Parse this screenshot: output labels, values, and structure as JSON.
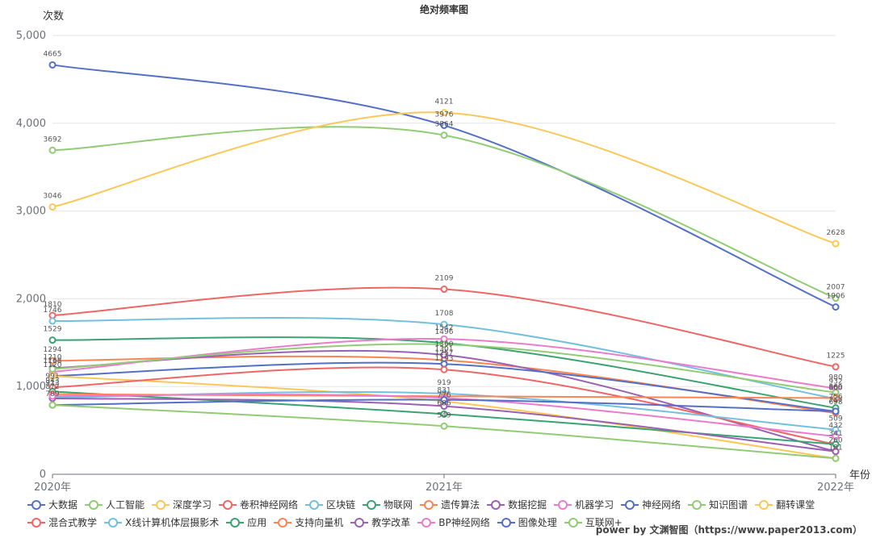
{
  "chart_data": {
    "type": "line",
    "title": "绝对频率图",
    "ylabel": "次数",
    "xlabel": "年份",
    "categories": [
      "2020年",
      "2021年",
      "2022年"
    ],
    "ylim": [
      0,
      5000
    ],
    "yticks": [
      0,
      1000,
      2000,
      3000,
      4000,
      5000
    ],
    "ytick_labels": [
      "0",
      "1,000",
      "2,000",
      "3,000",
      "4,000",
      "5,000"
    ],
    "smooth": true,
    "grid": "horizontal",
    "legend_position": "bottom",
    "series": [
      {
        "name": "大数据",
        "color": "#5470c6",
        "values": [
          4665,
          3976,
          1906
        ]
      },
      {
        "name": "人工智能",
        "color": "#91cc75",
        "values": [
          3692,
          3864,
          2007
        ]
      },
      {
        "name": "深度学习",
        "color": "#fac858",
        "values": [
          3046,
          4121,
          2628
        ]
      },
      {
        "name": "卷积神经网络",
        "color": "#ee6666",
        "values": [
          1810,
          2109,
          1225
        ]
      },
      {
        "name": "区块链",
        "color": "#73c0de",
        "values": [
          1746,
          1708,
          860
        ]
      },
      {
        "name": "物联网",
        "color": "#3ba272",
        "values": [
          1529,
          1496,
          756
        ]
      },
      {
        "name": "遗传算法",
        "color": "#fc8452",
        "values": [
          1294,
          1301,
          698
        ]
      },
      {
        "name": "数据挖掘",
        "color": "#9a60b4",
        "values": [
          1210,
          1360,
          260
        ]
      },
      {
        "name": "机器学习",
        "color": "#ea7ccc",
        "values": [
          1168,
          1542,
          980
        ]
      },
      {
        "name": "神经网络",
        "color": "#5470c6",
        "values": [
          1120,
          1257,
          717
        ]
      },
      {
        "name": "知识图谱",
        "color": "#91cc75",
        "values": [
          1200,
          1480,
          932
        ]
      },
      {
        "name": "翻转课堂",
        "color": "#fac858",
        "values": [
          1120,
          831,
          181
        ]
      },
      {
        "name": "混合式教学",
        "color": "#ee6666",
        "values": [
          991,
          1193,
          341
        ]
      },
      {
        "name": "X线计算机体层摄影术",
        "color": "#73c0de",
        "values": [
          872,
          919,
          509
        ]
      },
      {
        "name": "应用",
        "color": "#3ba272",
        "values": [
          943,
          686,
          342
        ]
      },
      {
        "name": "支持向量机",
        "color": "#fc8452",
        "values": [
          913,
          889,
          869
        ]
      },
      {
        "name": "教学改革",
        "color": "#9a60b4",
        "values": [
          865,
          776,
          260
        ]
      },
      {
        "name": "BP神经网络",
        "color": "#ea7ccc",
        "values": [
          891,
          870,
          432
        ]
      },
      {
        "name": "图像处理",
        "color": "#5470c6",
        "values": [
          789,
          849,
          717
        ]
      },
      {
        "name": "互联网+",
        "color": "#91cc75",
        "values": [
          789,
          549,
          181
        ]
      }
    ],
    "data_labels": [
      {
        "x": 0,
        "text": "4665",
        "value": 4665
      },
      {
        "x": 0,
        "text": "3692",
        "value": 3692
      },
      {
        "x": 0,
        "text": "3046",
        "value": 3046
      },
      {
        "x": 0,
        "text": "1810",
        "value": 1810
      },
      {
        "x": 0,
        "text": "1746",
        "value": 1746
      },
      {
        "x": 0,
        "text": "1529",
        "value": 1529
      },
      {
        "x": 0,
        "text": "1294",
        "value": 1294
      },
      {
        "x": 0,
        "text": "1210",
        "value": 1210
      },
      {
        "x": 0,
        "text": "1168",
        "value": 1168
      },
      {
        "x": 0,
        "text": "1120",
        "value": 1120
      },
      {
        "x": 0,
        "text": "991",
        "value": 991
      },
      {
        "x": 0,
        "text": "943",
        "value": 943
      },
      {
        "x": 0,
        "text": "913",
        "value": 913
      },
      {
        "x": 0,
        "text": "872",
        "value": 872
      },
      {
        "x": 0,
        "text": "789",
        "value": 789
      },
      {
        "x": 1,
        "text": "4121",
        "value": 4121
      },
      {
        "x": 1,
        "text": "3976",
        "value": 3976
      },
      {
        "x": 1,
        "text": "3864",
        "value": 3864
      },
      {
        "x": 1,
        "text": "2109",
        "value": 2109
      },
      {
        "x": 1,
        "text": "1708",
        "value": 1708
      },
      {
        "x": 1,
        "text": "1542",
        "value": 1542
      },
      {
        "x": 1,
        "text": "1496",
        "value": 1496
      },
      {
        "x": 1,
        "text": "1360",
        "value": 1360
      },
      {
        "x": 1,
        "text": "1301",
        "value": 1301
      },
      {
        "x": 1,
        "text": "1257",
        "value": 1257
      },
      {
        "x": 1,
        "text": "1193",
        "value": 1193
      },
      {
        "x": 1,
        "text": "919",
        "value": 919
      },
      {
        "x": 1,
        "text": "831",
        "value": 831
      },
      {
        "x": 1,
        "text": "776",
        "value": 776
      },
      {
        "x": 1,
        "text": "686",
        "value": 686
      },
      {
        "x": 1,
        "text": "549",
        "value": 549
      },
      {
        "x": 2,
        "text": "2628",
        "value": 2628
      },
      {
        "x": 2,
        "text": "2007",
        "value": 2007
      },
      {
        "x": 2,
        "text": "1906",
        "value": 1906
      },
      {
        "x": 2,
        "text": "1225",
        "value": 1225
      },
      {
        "x": 2,
        "text": "980",
        "value": 980
      },
      {
        "x": 2,
        "text": "932",
        "value": 932
      },
      {
        "x": 2,
        "text": "869",
        "value": 869
      },
      {
        "x": 2,
        "text": "860",
        "value": 860
      },
      {
        "x": 2,
        "text": "756",
        "value": 756
      },
      {
        "x": 2,
        "text": "698",
        "value": 698
      },
      {
        "x": 2,
        "text": "717",
        "value": 717
      },
      {
        "x": 2,
        "text": "509",
        "value": 509
      },
      {
        "x": 2,
        "text": "432",
        "value": 432
      },
      {
        "x": 2,
        "text": "341",
        "value": 341
      },
      {
        "x": 2,
        "text": "260",
        "value": 260
      },
      {
        "x": 2,
        "text": "181",
        "value": 181
      }
    ]
  },
  "footer": {
    "credit": "power by 文渊智图（https://www.paper2013.com）"
  }
}
